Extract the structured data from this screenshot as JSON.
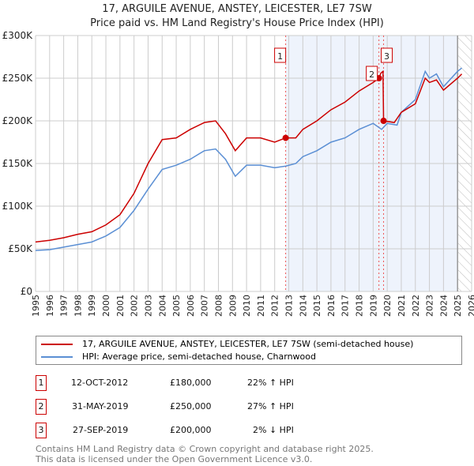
{
  "title": "17, ARGUILE AVENUE, ANSTEY, LEICESTER, LE7 7SW",
  "subtitle": "Price paid vs. HM Land Registry's House Price Index (HPI)",
  "colors": {
    "property": "#cc0000",
    "hpi": "#5b8fd4",
    "shade": "#eef3fc"
  },
  "chart_data": {
    "type": "line",
    "title": "Price paid vs. HM Land Registry's House Price Index (HPI)",
    "xlim": [
      1995,
      2026
    ],
    "ylim": [
      0,
      300000
    ],
    "x_ticks": [
      "1995",
      "1996",
      "1997",
      "1998",
      "1999",
      "2000",
      "2001",
      "2002",
      "2003",
      "2004",
      "2005",
      "2006",
      "2007",
      "2008",
      "2009",
      "2010",
      "2011",
      "2012",
      "2013",
      "2014",
      "2015",
      "2016",
      "2017",
      "2018",
      "2019",
      "2020",
      "2021",
      "2022",
      "2023",
      "2024",
      "2025",
      "2026"
    ],
    "y_ticks": [
      {
        "v": 0,
        "label": "£0"
      },
      {
        "v": 50000,
        "label": "£50K"
      },
      {
        "v": 100000,
        "label": "£100K"
      },
      {
        "v": 150000,
        "label": "£150K"
      },
      {
        "v": 200000,
        "label": "£200K"
      },
      {
        "v": 250000,
        "label": "£250K"
      },
      {
        "v": 300000,
        "label": "£300K"
      }
    ],
    "grid": true,
    "series": [
      {
        "name": "17, ARGUILE AVENUE, ANSTEY, LEICESTER, LE7 7SW (semi-detached house)",
        "color": "#cc0000",
        "points": [
          [
            1995,
            58000
          ],
          [
            1996,
            60000
          ],
          [
            1997,
            63000
          ],
          [
            1998,
            67000
          ],
          [
            1999,
            70000
          ],
          [
            2000,
            78000
          ],
          [
            2001,
            90000
          ],
          [
            2002,
            115000
          ],
          [
            2003,
            150000
          ],
          [
            2004,
            178000
          ],
          [
            2005,
            180000
          ],
          [
            2006,
            190000
          ],
          [
            2007,
            198000
          ],
          [
            2007.8,
            200000
          ],
          [
            2008.5,
            185000
          ],
          [
            2009.2,
            165000
          ],
          [
            2010,
            180000
          ],
          [
            2011,
            180000
          ],
          [
            2012,
            175000
          ],
          [
            2012.78,
            180000
          ],
          [
            2013.5,
            180000
          ],
          [
            2014,
            190000
          ],
          [
            2015,
            200000
          ],
          [
            2016,
            213000
          ],
          [
            2017,
            222000
          ],
          [
            2018,
            235000
          ],
          [
            2019,
            245000
          ],
          [
            2019.41,
            250000
          ],
          [
            2019.55,
            256000
          ],
          [
            2019.7,
            258000
          ],
          [
            2019.74,
            200000
          ],
          [
            2020.5,
            198000
          ],
          [
            2021,
            210000
          ],
          [
            2022,
            220000
          ],
          [
            2022.7,
            250000
          ],
          [
            2023,
            245000
          ],
          [
            2023.5,
            248000
          ],
          [
            2024,
            236000
          ],
          [
            2025,
            250000
          ],
          [
            2025.3,
            255000
          ]
        ]
      },
      {
        "name": "HPI: Average price, semi-detached house, Charnwood",
        "color": "#5b8fd4",
        "points": [
          [
            1995,
            48000
          ],
          [
            1996,
            49000
          ],
          [
            1997,
            52000
          ],
          [
            1998,
            55000
          ],
          [
            1999,
            58000
          ],
          [
            2000,
            65000
          ],
          [
            2001,
            75000
          ],
          [
            2002,
            95000
          ],
          [
            2003,
            120000
          ],
          [
            2004,
            143000
          ],
          [
            2005,
            148000
          ],
          [
            2006,
            155000
          ],
          [
            2007,
            165000
          ],
          [
            2007.8,
            167000
          ],
          [
            2008.5,
            155000
          ],
          [
            2009.2,
            135000
          ],
          [
            2010,
            148000
          ],
          [
            2011,
            148000
          ],
          [
            2012,
            145000
          ],
          [
            2012.8,
            147000
          ],
          [
            2013.5,
            150000
          ],
          [
            2014,
            158000
          ],
          [
            2015,
            165000
          ],
          [
            2016,
            175000
          ],
          [
            2017,
            180000
          ],
          [
            2018,
            190000
          ],
          [
            2019,
            197000
          ],
          [
            2019.6,
            190000
          ],
          [
            2020,
            197000
          ],
          [
            2020.7,
            195000
          ],
          [
            2021,
            210000
          ],
          [
            2022,
            225000
          ],
          [
            2022.7,
            258000
          ],
          [
            2023,
            250000
          ],
          [
            2023.5,
            255000
          ],
          [
            2024,
            240000
          ],
          [
            2025,
            258000
          ],
          [
            2025.3,
            262000
          ]
        ]
      }
    ],
    "sales": [
      {
        "n": "1",
        "x": 2012.78,
        "y": 180000
      },
      {
        "n": "2",
        "x": 2019.41,
        "y": 250000
      },
      {
        "n": "3",
        "x": 2019.74,
        "y": 200000
      }
    ],
    "shade_from": 2012.78,
    "hatch_from": 2025.0
  },
  "legend": {
    "property": "17, ARGUILE AVENUE, ANSTEY, LEICESTER, LE7 7SW (semi-detached house)",
    "hpi": "HPI: Average price, semi-detached house, Charnwood"
  },
  "table": [
    {
      "n": "1",
      "date": "12-OCT-2012",
      "price": "£180,000",
      "hpi": "22% ↑ HPI"
    },
    {
      "n": "2",
      "date": "31-MAY-2019",
      "price": "£250,000",
      "hpi": "27% ↑ HPI"
    },
    {
      "n": "3",
      "date": "27-SEP-2019",
      "price": "£200,000",
      "hpi": "2% ↓ HPI"
    }
  ],
  "footer": [
    "Contains HM Land Registry data © Crown copyright and database right 2025.",
    "This data is licensed under the Open Government Licence v3.0."
  ]
}
